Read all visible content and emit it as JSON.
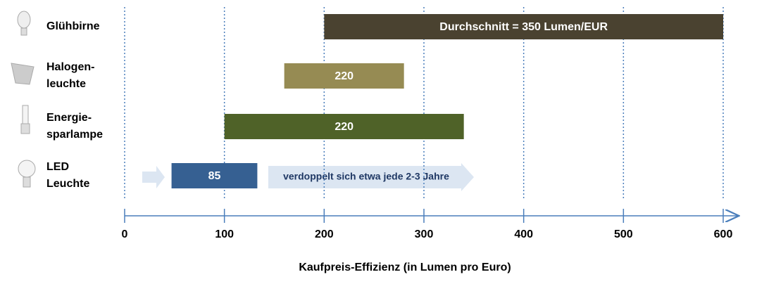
{
  "chart_data": {
    "type": "floating-bar",
    "x_label": "Kaufpreis-Effizienz (in Lumen pro Euro)",
    "categories": [
      [
        "Glühbirne"
      ],
      [
        "Halogen-",
        "leuchte"
      ],
      [
        "Energie-",
        "sparlampe"
      ],
      [
        "LED",
        "Leuchte"
      ]
    ],
    "starts": [
      200,
      160,
      100,
      47
    ],
    "ends": [
      600,
      280,
      340,
      133
    ],
    "bar_labels": [
      "Durchschnitt = 350 Lumen/EUR",
      "220",
      "220",
      "85"
    ],
    "colors": [
      "#4a4230",
      "#968b53",
      "#4f6228",
      "#366092"
    ],
    "annotation": "verdoppelt sich etwa jede 2-3 Jahre",
    "xlim": [
      0,
      600
    ],
    "xticks": [
      0,
      100,
      200,
      300,
      400,
      500,
      600
    ],
    "grid": true
  }
}
